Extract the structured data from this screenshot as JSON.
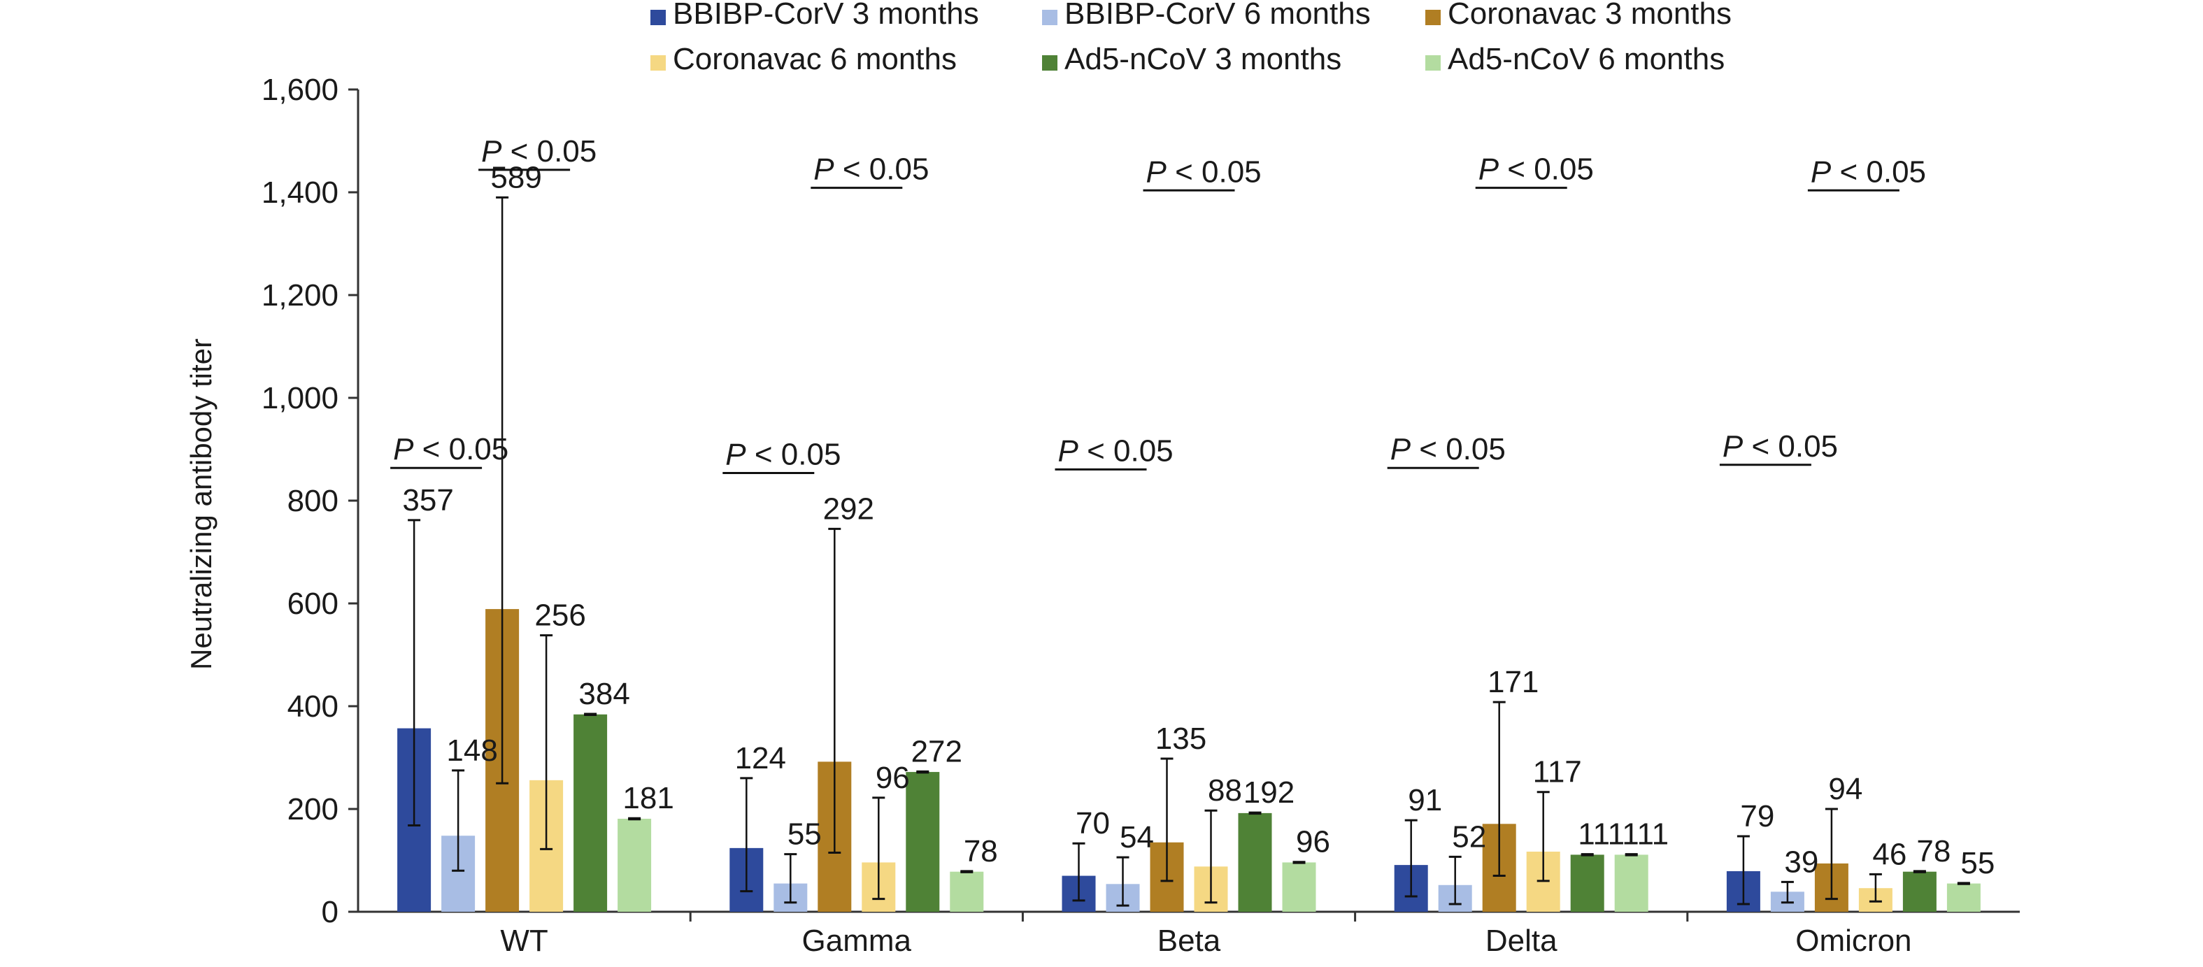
{
  "chart_data": {
    "type": "bar",
    "title": "",
    "xlabel": "",
    "ylabel": "Neutralizing antibody titer",
    "ylim": [
      0,
      1600
    ],
    "yticks": [
      "0",
      "200",
      "400",
      "600",
      "800",
      "1,000",
      "1,200",
      "1,400",
      "1,600"
    ],
    "grid": false,
    "legend_position": "top",
    "categories": [
      "WT",
      "Gamma",
      "Beta",
      "Delta",
      "Omicron"
    ],
    "series": [
      {
        "name": "BBIBP-CorV 3 months",
        "color": "#2e4a9c",
        "values": [
          357,
          124,
          70,
          91,
          79
        ],
        "err_low": [
          168,
          40,
          22,
          30,
          15
        ],
        "err_high": [
          762,
          260,
          133,
          178,
          147
        ]
      },
      {
        "name": "BBIBP-CorV 6 months",
        "color": "#a8bde4",
        "values": [
          148,
          55,
          54,
          52,
          39
        ],
        "err_low": [
          80,
          18,
          12,
          15,
          18
        ],
        "err_high": [
          275,
          112,
          106,
          107,
          58
        ]
      },
      {
        "name": "Coronavac 3 months",
        "color": "#b07e23",
        "values": [
          589,
          292,
          135,
          171,
          94
        ],
        "err_low": [
          250,
          115,
          60,
          70,
          25
        ],
        "err_high": [
          1390,
          745,
          298,
          408,
          200
        ]
      },
      {
        "name": "Coronavac 6 months",
        "color": "#f5d883",
        "values": [
          256,
          96,
          88,
          117,
          46
        ],
        "err_low": [
          122,
          25,
          18,
          60,
          20
        ],
        "err_high": [
          538,
          222,
          197,
          233,
          73
        ]
      },
      {
        "name": "Ad5-nCoV 3 months",
        "color": "#4f8236",
        "values": [
          384,
          272,
          192,
          111,
          78
        ],
        "err_low": [
          383,
          271,
          191,
          110,
          77
        ],
        "err_high": [
          385,
          273,
          193,
          112,
          79
        ]
      },
      {
        "name": "Ad5-nCoV 6 months",
        "color": "#b3dca0",
        "values": [
          181,
          78,
          96,
          111,
          55
        ],
        "err_low": [
          180,
          77,
          95,
          110,
          54
        ],
        "err_high": [
          182,
          79,
          97,
          112,
          56
        ]
      }
    ],
    "value_labels": [
      [
        "357",
        "124",
        "70",
        "91",
        "79"
      ],
      [
        "148",
        "55",
        "54",
        "52",
        "39"
      ],
      [
        "589",
        "292",
        "135",
        "171",
        "94"
      ],
      [
        "256",
        "96",
        "88",
        "117",
        "46"
      ],
      [
        "384",
        "272",
        "192",
        "111",
        "78"
      ],
      [
        "181",
        "78",
        "96",
        "111",
        "55"
      ]
    ],
    "annotations": {
      "p_italic": "P",
      "p_rest": " < 0.05",
      "lower": [
        {
          "category": "WT",
          "y_value": 880
        },
        {
          "category": "Gamma",
          "y_value": 870
        },
        {
          "category": "Beta",
          "y_value": 877
        },
        {
          "category": "Delta",
          "y_value": 880
        },
        {
          "category": "Omicron",
          "y_value": 886
        }
      ],
      "upper": [
        {
          "category": "WT",
          "y_value": 1460
        },
        {
          "category": "Gamma",
          "y_value": 1425
        },
        {
          "category": "Beta",
          "y_value": 1420
        },
        {
          "category": "Delta",
          "y_value": 1425
        },
        {
          "category": "Omicron",
          "y_value": 1420
        }
      ]
    }
  }
}
